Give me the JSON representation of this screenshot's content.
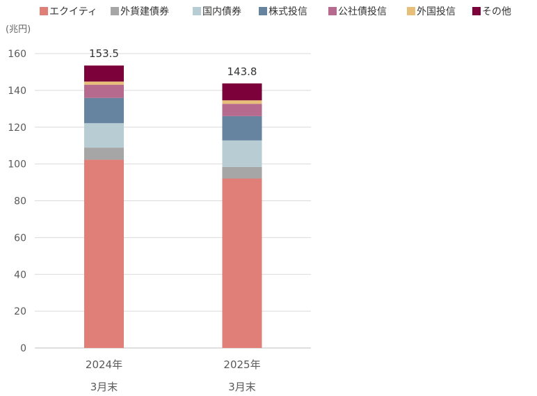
{
  "chart_data": {
    "type": "bar",
    "stacked": true,
    "unit": "(兆円)",
    "ylim": [
      0,
      160
    ],
    "yticks": [
      0,
      20,
      40,
      60,
      80,
      100,
      120,
      140,
      160
    ],
    "categories": [
      [
        "2024年",
        "3月末"
      ],
      [
        "2025年",
        "3月末"
      ]
    ],
    "totals": [
      "153.5",
      "143.8"
    ],
    "legend_position": "top",
    "grid": true,
    "series": [
      {
        "name": "エクイティ",
        "color": "#e07f78",
        "values": [
          102.3,
          92.1
        ]
      },
      {
        "name": "外貨建債券",
        "color": "#a6a6a6",
        "values": [
          6.6,
          6.3
        ]
      },
      {
        "name": "国内債券",
        "color": "#b7cdd3",
        "values": [
          13.3,
          14.4
        ]
      },
      {
        "name": "株式投信",
        "color": "#6683a0",
        "values": [
          13.7,
          13.2
        ]
      },
      {
        "name": "公社債投信",
        "color": "#b56a8e",
        "values": [
          7.2,
          6.7
        ]
      },
      {
        "name": "外国投信",
        "color": "#e8bf78",
        "values": [
          1.7,
          1.9
        ]
      },
      {
        "name": "その他",
        "color": "#7c0039",
        "values": [
          8.7,
          9.2
        ]
      }
    ]
  }
}
